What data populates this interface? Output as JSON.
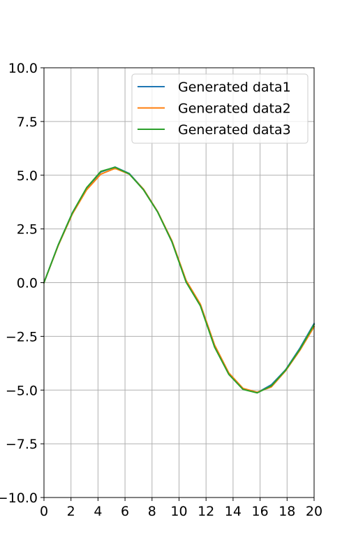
{
  "chart_data": {
    "type": "line",
    "title": "",
    "xlabel": "",
    "ylabel": "",
    "xlim": [
      0,
      20
    ],
    "ylim": [
      -10,
      10
    ],
    "grid": true,
    "legend_position": "top-right",
    "x_ticks": [
      "0",
      "2",
      "4",
      "6",
      "8",
      "10",
      "12",
      "14",
      "16",
      "18",
      "20"
    ],
    "y_ticks": [
      "10.0",
      "7.5",
      "5.0",
      "2.5",
      "0.0",
      "−2.5",
      "−5.0",
      "−7.5",
      "−10.0"
    ],
    "x": [
      0,
      1.0526,
      2.1053,
      3.1579,
      4.2105,
      5.2632,
      6.3158,
      7.3684,
      8.4211,
      9.4737,
      10.5263,
      11.5789,
      12.6316,
      13.6842,
      14.7368,
      15.7895,
      16.8421,
      17.8947,
      18.9474,
      20.0
    ],
    "series": [
      {
        "name": "Generated data1",
        "color": "#1f77b4",
        "values": [
          0.0,
          1.75,
          3.25,
          4.4,
          5.15,
          5.38,
          5.08,
          4.35,
          3.3,
          1.9,
          0.05,
          -1.05,
          -2.95,
          -4.25,
          -4.95,
          -5.12,
          -4.75,
          -4.05,
          -3.05,
          -1.9
        ]
      },
      {
        "name": "Generated data2",
        "color": "#ff7f0e",
        "values": [
          0.0,
          1.72,
          3.2,
          4.32,
          5.05,
          5.32,
          5.05,
          4.35,
          3.3,
          1.95,
          0.1,
          -1.0,
          -2.9,
          -4.2,
          -4.92,
          -5.1,
          -4.85,
          -4.1,
          -3.15,
          -2.05
        ]
      },
      {
        "name": "Generated data3",
        "color": "#2ca02c",
        "values": [
          0.0,
          1.75,
          3.25,
          4.42,
          5.18,
          5.37,
          5.06,
          4.32,
          3.28,
          1.9,
          0.02,
          -1.08,
          -3.0,
          -4.27,
          -4.97,
          -5.13,
          -4.8,
          -4.07,
          -3.1,
          -1.95
        ]
      }
    ]
  }
}
